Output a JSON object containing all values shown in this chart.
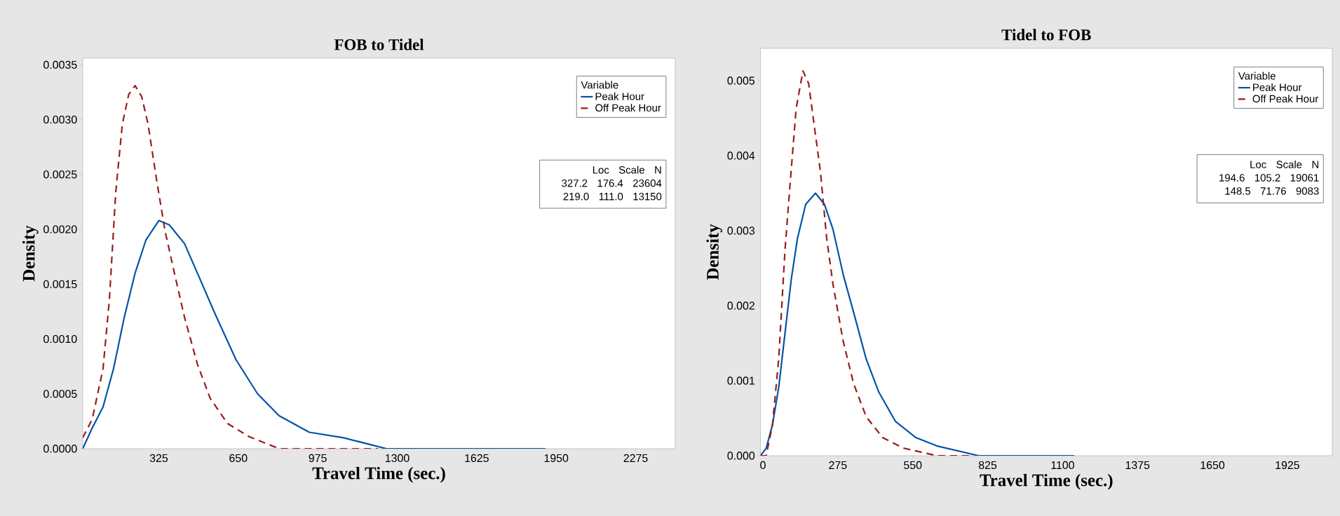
{
  "chart_data": [
    {
      "type": "line",
      "title": "FOB to Tidel",
      "xlabel": "Travel Time (sec.)",
      "ylabel": "Density",
      "legend_title": "Variable",
      "legend": "top right",
      "xlim": [
        14,
        2437
      ],
      "ylim": [
        0,
        0.00356
      ],
      "xticks": [
        325,
        650,
        975,
        1300,
        1625,
        1950,
        2275
      ],
      "yticks": [
        {
          "value": 0,
          "label": "0.0000"
        },
        {
          "value": 0.0005,
          "label": "0.0005"
        },
        {
          "value": 0.001,
          "label": "0.0010"
        },
        {
          "value": 0.0015,
          "label": "0.0015"
        },
        {
          "value": 0.002,
          "label": "0.0020"
        },
        {
          "value": 0.0025,
          "label": "0.0025"
        },
        {
          "value": 0.003,
          "label": "0.0030"
        },
        {
          "value": 0.0035,
          "label": "0.0035"
        }
      ],
      "annotations": [
        "Loc Scale N",
        "327.2 176.4 23604",
        "219.0 111.0 13150"
      ],
      "series": [
        {
          "name": "Peak Hour",
          "color": "#0054a6",
          "line_style": "solid",
          "x": [
            14,
            53,
            97,
            140,
            184,
            228,
            272,
            325,
            368,
            430,
            483,
            553,
            641,
            729,
            817,
            940,
            1080,
            1256,
            1432,
            1906
          ],
          "values": [
            0,
            0.00019,
            0.00038,
            0.00073,
            0.0012,
            0.0016,
            0.0019,
            0.00208,
            0.00204,
            0.00187,
            0.0016,
            0.00124,
            0.00081,
            0.0005,
            0.0003,
            0.00015,
            0.0001,
            0,
            0,
            0
          ]
        },
        {
          "name": "Off Peak Hour",
          "color": "#9b1b1b",
          "line_style": "dashed",
          "x": [
            14,
            53,
            97,
            123,
            149,
            176,
            202,
            228,
            255,
            281,
            316,
            351,
            386,
            430,
            483,
            535,
            606,
            694,
            817,
            940,
            1221
          ],
          "values": [
            0.0001,
            0.00027,
            0.00073,
            0.00136,
            0.00234,
            0.00296,
            0.00323,
            0.00331,
            0.00321,
            0.00296,
            0.00245,
            0.00198,
            0.00163,
            0.0012,
            0.00077,
            0.00046,
            0.00023,
            0.00011,
            0,
            0,
            0
          ]
        }
      ]
    },
    {
      "type": "line",
      "title": "Tidel to FOB",
      "xlabel": "Travel Time (sec.)",
      "ylabel": "Density",
      "legend_title": "Variable",
      "legend": "top right",
      "xlim": [
        -9,
        2090
      ],
      "ylim": [
        0,
        0.00543
      ],
      "xticks": [
        0,
        275,
        550,
        825,
        1100,
        1375,
        1650,
        1925
      ],
      "yticks": [
        {
          "value": 0,
          "label": "0.000"
        },
        0.001,
        0.002,
        0.003,
        0.004,
        0.005
      ],
      "annotations": [
        "Loc Scale N",
        "194.6 105.2 19061",
        "148.5 71.76 9083"
      ],
      "series": [
        {
          "name": "Peak Hour",
          "color": "#0054a6",
          "line_style": "solid",
          "x": [
            -9,
            12,
            35,
            58,
            81,
            104,
            127,
            157,
            193,
            226,
            257,
            295,
            333,
            379,
            425,
            486,
            562,
            639,
            792,
            1143
          ],
          "values": [
            0,
            0.0001,
            0.00041,
            0.00091,
            0.00163,
            0.00235,
            0.0029,
            0.00335,
            0.0035,
            0.00335,
            0.00302,
            0.00241,
            0.00191,
            0.00129,
            0.00085,
            0.00046,
            0.00024,
            0.00013,
            0,
            0
          ]
        },
        {
          "name": "Off Peak Hour",
          "color": "#9b1b1b",
          "line_style": "dashed",
          "x": [
            -9,
            12,
            35,
            58,
            81,
            101,
            122,
            147,
            168,
            188,
            211,
            234,
            257,
            295,
            333,
            379,
            440,
            517,
            639,
            761
          ],
          "values": [
            0,
            0,
            0.00041,
            0.00129,
            0.00274,
            0.00368,
            0.00463,
            0.00513,
            0.00496,
            0.00441,
            0.00379,
            0.0029,
            0.00229,
            0.00152,
            0.00096,
            0.00052,
            0.00024,
            0.0001,
            0,
            0
          ]
        }
      ]
    }
  ]
}
